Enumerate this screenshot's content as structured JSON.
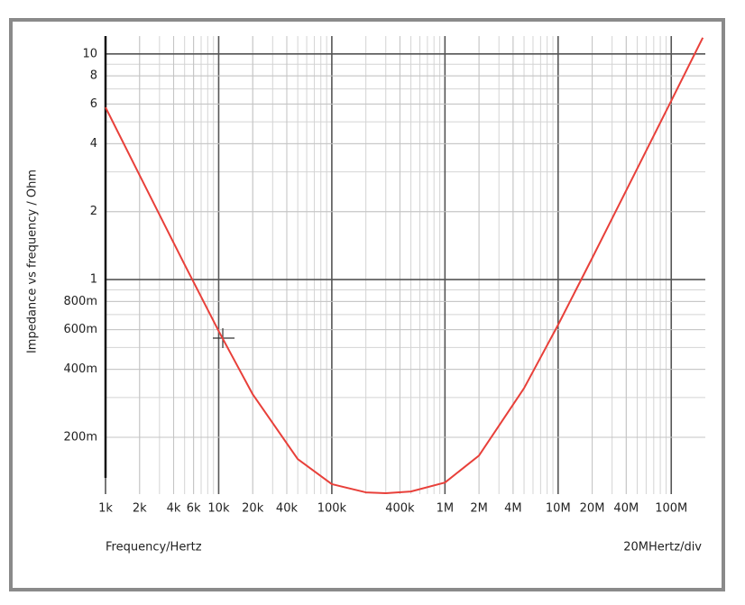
{
  "chart_data": {
    "type": "line",
    "log_x": true,
    "log_y": true,
    "grid": true,
    "minor_grid": true,
    "ylabel": "Impedance vs frequency / Ohm",
    "xlabel": "Frequency/Hertz",
    "annotation": "20MHertz/div",
    "xlim": [
      1000,
      200000000
    ],
    "ylim": [
      0.112,
      12
    ],
    "xticks": [
      {
        "value": 1000,
        "label": "1k"
      },
      {
        "value": 2000,
        "label": "2k"
      },
      {
        "value": 4000,
        "label": "4k"
      },
      {
        "value": 6000,
        "label": "6k"
      },
      {
        "value": 10000,
        "label": "10k"
      },
      {
        "value": 20000,
        "label": "20k"
      },
      {
        "value": 40000,
        "label": "40k"
      },
      {
        "value": 100000,
        "label": "100k"
      },
      {
        "value": 400000,
        "label": "400k"
      },
      {
        "value": 1000000,
        "label": "1M"
      },
      {
        "value": 2000000,
        "label": "2M"
      },
      {
        "value": 4000000,
        "label": "4M"
      },
      {
        "value": 10000000,
        "label": "10M"
      },
      {
        "value": 20000000,
        "label": "20M"
      },
      {
        "value": 40000000,
        "label": "40M"
      },
      {
        "value": 100000000,
        "label": "100M"
      }
    ],
    "yticks": [
      {
        "value": 0.2,
        "label": "200m"
      },
      {
        "value": 0.4,
        "label": "400m"
      },
      {
        "value": 0.6,
        "label": "600m"
      },
      {
        "value": 0.8,
        "label": "800m"
      },
      1,
      2,
      4,
      6,
      8,
      10
    ],
    "series": [
      {
        "name": "Impedance",
        "color": "#e8403a",
        "x": [
          1000,
          2000,
          5000,
          10000,
          20000,
          50000,
          100000,
          200000,
          300000,
          500000,
          1000000,
          2000000,
          5000000,
          10000000,
          20000000,
          50000000,
          100000000,
          190000000
        ],
        "values": [
          5.8,
          2.9,
          1.165,
          0.591,
          0.31,
          0.16,
          0.124,
          0.114,
          0.113,
          0.115,
          0.126,
          0.166,
          0.33,
          0.63,
          1.245,
          3.1,
          6.2,
          11.8
        ]
      }
    ]
  }
}
